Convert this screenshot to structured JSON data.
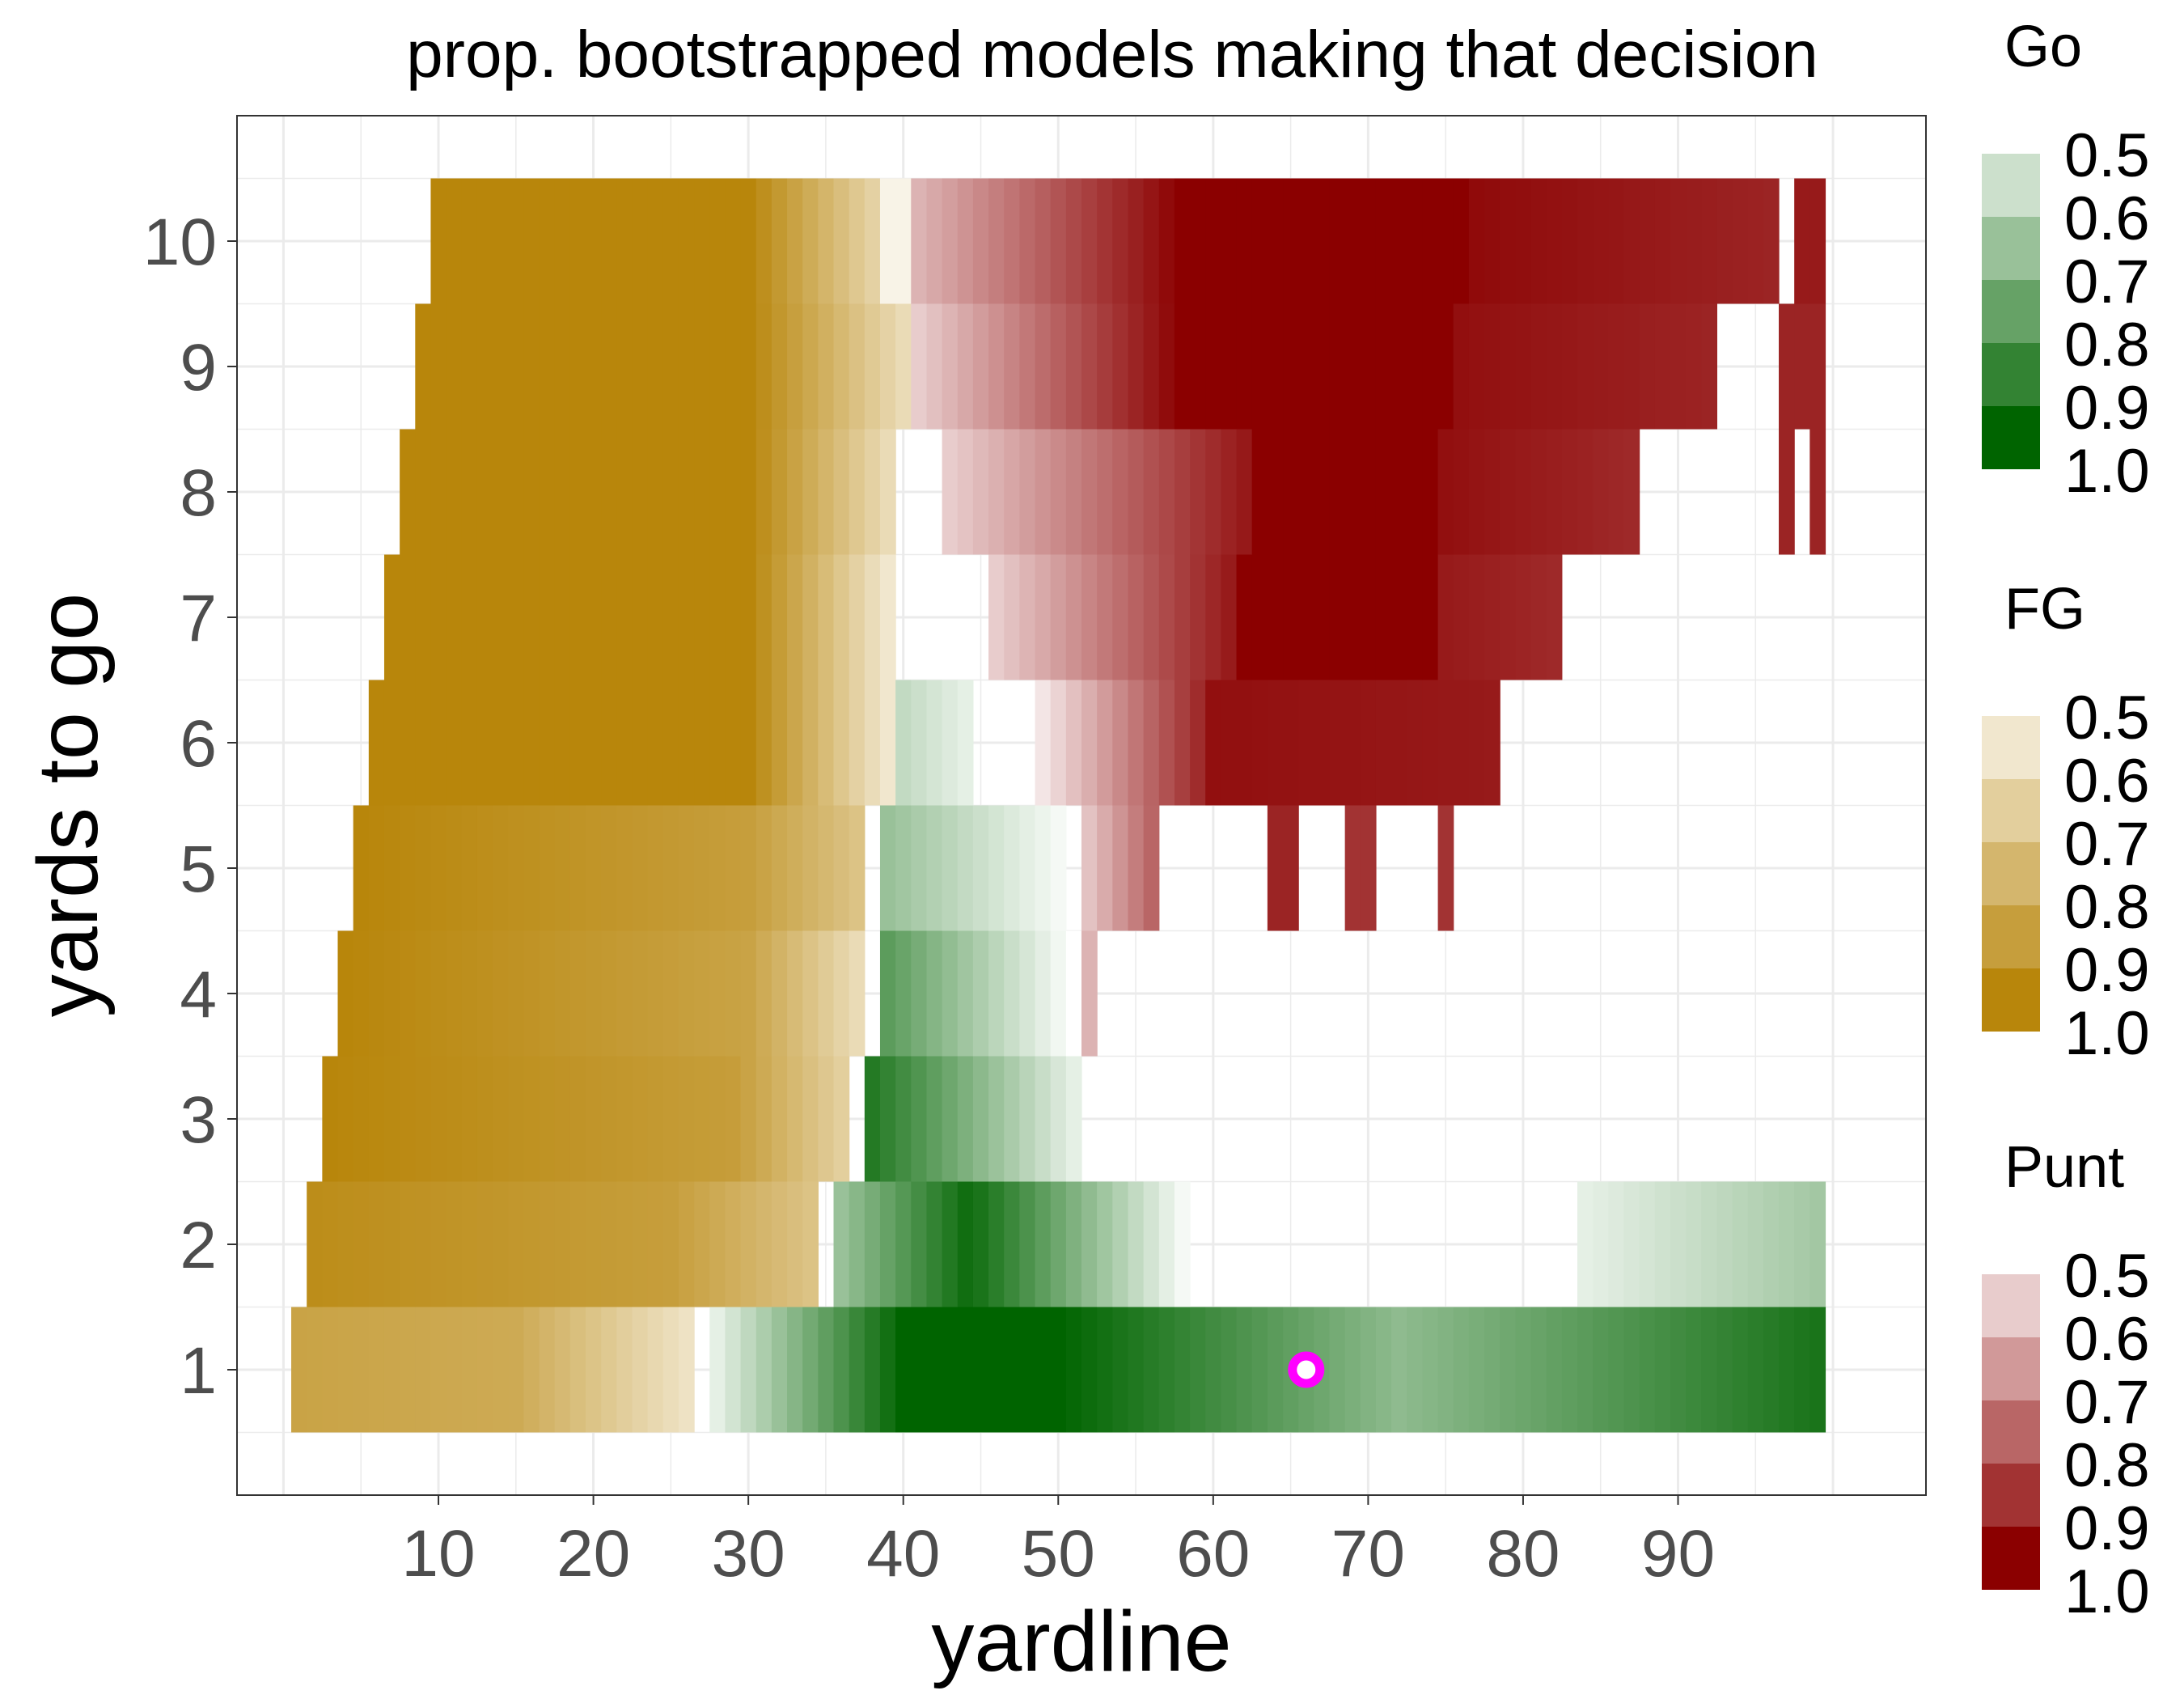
{
  "chart_data": {
    "type": "heatmap",
    "title": "prop. bootstrapped models making that decision",
    "xlabel": "yardline",
    "ylabel": "yards to go",
    "x_ticks": [
      "10",
      "20",
      "30",
      "40",
      "50",
      "60",
      "70",
      "80",
      "90"
    ],
    "y_ticks": [
      "1",
      "2",
      "3",
      "4",
      "5",
      "6",
      "7",
      "8",
      "9",
      "10"
    ],
    "xlim": [
      -3,
      106
    ],
    "ylim": [
      0,
      11
    ],
    "grid": true,
    "legend_position": "right",
    "legends": [
      {
        "title": "Go",
        "color": "#006400",
        "labels": [
          "0.5",
          "0.6",
          "0.7",
          "0.8",
          "0.9",
          "1.0"
        ]
      },
      {
        "title": "FG",
        "color": "#b8860b",
        "labels": [
          "0.5",
          "0.6",
          "0.7",
          "0.8",
          "0.9",
          "1.0"
        ]
      },
      {
        "title": "Punt",
        "color": "#8b0000",
        "labels": [
          "0.5",
          "0.6",
          "0.7",
          "0.8",
          "0.9",
          "1.0"
        ]
      }
    ],
    "marker": {
      "yardline": 66,
      "ydstogo": 1,
      "color": "#ff00ff"
    },
    "rows": [
      {
        "ydstogo": 10,
        "segments": [
          {
            "decision": "FG",
            "from": 10,
            "to": 30,
            "from_value": 1.0,
            "to_value": 1.0
          },
          {
            "decision": "FG",
            "from": 30,
            "to": 39,
            "from_value": 1.0,
            "to_value": 0.65
          },
          {
            "decision": "FG",
            "from": 39,
            "to": 40,
            "from_value": 0.55,
            "to_value": 0.55
          },
          {
            "decision": "Punt",
            "from": 41,
            "to": 58,
            "from_value": 0.65,
            "to_value": 1.0
          },
          {
            "decision": "Punt",
            "from": 58,
            "to": 77,
            "from_value": 1.0,
            "to_value": 1.0
          },
          {
            "decision": "Punt",
            "from": 77,
            "to": 96,
            "from_value": 0.98,
            "to_value": 0.93
          },
          {
            "decision": "Punt",
            "from": 98,
            "to": 99,
            "from_value": 0.95,
            "to_value": 0.95
          }
        ]
      },
      {
        "ydstogo": 9,
        "segments": [
          {
            "decision": "FG",
            "from": 9,
            "to": 30,
            "from_value": 1.0,
            "to_value": 1.0
          },
          {
            "decision": "FG",
            "from": 30,
            "to": 40,
            "from_value": 1.0,
            "to_value": 0.65
          },
          {
            "decision": "Punt",
            "from": 41,
            "to": 58,
            "from_value": 0.6,
            "to_value": 1.0
          },
          {
            "decision": "Punt",
            "from": 58,
            "to": 76,
            "from_value": 1.0,
            "to_value": 1.0
          },
          {
            "decision": "Punt",
            "from": 76,
            "to": 92,
            "from_value": 0.97,
            "to_value": 0.93
          },
          {
            "decision": "Punt",
            "from": 97,
            "to": 99,
            "from_value": 0.93,
            "to_value": 0.93
          }
        ]
      },
      {
        "ydstogo": 8,
        "segments": [
          {
            "decision": "FG",
            "from": 8,
            "to": 30,
            "from_value": 1.0,
            "to_value": 1.0
          },
          {
            "decision": "FG",
            "from": 30,
            "to": 39,
            "from_value": 1.0,
            "to_value": 0.65
          },
          {
            "decision": "Punt",
            "from": 43,
            "to": 63,
            "from_value": 0.6,
            "to_value": 0.97
          },
          {
            "decision": "Punt",
            "from": 63,
            "to": 75,
            "from_value": 1.0,
            "to_value": 1.0
          },
          {
            "decision": "Punt",
            "from": 75,
            "to": 87,
            "from_value": 0.97,
            "to_value": 0.92
          },
          {
            "decision": "Punt",
            "from": 97,
            "to": 97,
            "from_value": 0.93,
            "to_value": 0.93
          },
          {
            "decision": "Punt",
            "from": 99,
            "to": 99,
            "from_value": 0.93,
            "to_value": 0.93
          }
        ]
      },
      {
        "ydstogo": 7,
        "segments": [
          {
            "decision": "FG",
            "from": 7,
            "to": 30,
            "from_value": 1.0,
            "to_value": 1.0
          },
          {
            "decision": "FG",
            "from": 30,
            "to": 39,
            "from_value": 1.0,
            "to_value": 0.6
          },
          {
            "decision": "Punt",
            "from": 46,
            "to": 62,
            "from_value": 0.6,
            "to_value": 0.97
          },
          {
            "decision": "Punt",
            "from": 62,
            "to": 75,
            "from_value": 1.0,
            "to_value": 1.0
          },
          {
            "decision": "Punt",
            "from": 75,
            "to": 82,
            "from_value": 0.95,
            "to_value": 0.92
          }
        ]
      },
      {
        "ydstogo": 6,
        "segments": [
          {
            "decision": "FG",
            "from": 6,
            "to": 30,
            "from_value": 1.0,
            "to_value": 1.0
          },
          {
            "decision": "FG",
            "from": 30,
            "to": 39,
            "from_value": 1.0,
            "to_value": 0.6
          },
          {
            "decision": "Go",
            "from": 40,
            "to": 44,
            "from_value": 0.62,
            "to_value": 0.55
          },
          {
            "decision": "Punt",
            "from": 49,
            "to": 60,
            "from_value": 0.55,
            "to_value": 0.95
          },
          {
            "decision": "Punt",
            "from": 60,
            "to": 78,
            "from_value": 0.97,
            "to_value": 0.95
          }
        ]
      },
      {
        "ydstogo": 5,
        "segments": [
          {
            "decision": "FG",
            "from": 5,
            "to": 30,
            "from_value": 1.0,
            "to_value": 0.9
          },
          {
            "decision": "FG",
            "from": 30,
            "to": 37,
            "from_value": 0.9,
            "to_value": 0.75
          },
          {
            "decision": "Go",
            "from": 39,
            "to": 50,
            "from_value": 0.7,
            "to_value": 0.52
          },
          {
            "decision": "Punt",
            "from": 52,
            "to": 56,
            "from_value": 0.62,
            "to_value": 0.8
          },
          {
            "decision": "Punt",
            "from": 64,
            "to": 65,
            "from_value": 0.93,
            "to_value": 0.93
          },
          {
            "decision": "Punt",
            "from": 69,
            "to": 70,
            "from_value": 0.9,
            "to_value": 0.9
          },
          {
            "decision": "Punt",
            "from": 75,
            "to": 75,
            "from_value": 0.9,
            "to_value": 0.9
          }
        ]
      },
      {
        "ydstogo": 4,
        "segments": [
          {
            "decision": "FG",
            "from": 4,
            "to": 30,
            "from_value": 1.0,
            "to_value": 0.88
          },
          {
            "decision": "FG",
            "from": 30,
            "to": 37,
            "from_value": 0.88,
            "to_value": 0.65
          },
          {
            "decision": "Go",
            "from": 39,
            "to": 51,
            "from_value": 0.82,
            "to_value": 0.5
          },
          {
            "decision": "Punt",
            "from": 52,
            "to": 52,
            "from_value": 0.65,
            "to_value": 0.65
          }
        ]
      },
      {
        "ydstogo": 3,
        "segments": [
          {
            "decision": "FG",
            "from": 3,
            "to": 30,
            "from_value": 1.0,
            "to_value": 0.9
          },
          {
            "decision": "FG",
            "from": 30,
            "to": 36,
            "from_value": 0.88,
            "to_value": 0.7
          },
          {
            "decision": "Go",
            "from": 38,
            "to": 51,
            "from_value": 0.93,
            "to_value": 0.55
          }
        ]
      },
      {
        "ydstogo": 2,
        "segments": [
          {
            "decision": "FG",
            "from": 2,
            "to": 25,
            "from_value": 0.97,
            "to_value": 0.9
          },
          {
            "decision": "FG",
            "from": 25,
            "to": 34,
            "from_value": 0.9,
            "to_value": 0.75
          },
          {
            "decision": "Go",
            "from": 36,
            "to": 45,
            "from_value": 0.7,
            "to_value": 1.0
          },
          {
            "decision": "Go",
            "from": 45,
            "to": 58,
            "from_value": 0.95,
            "to_value": 0.52
          },
          {
            "decision": "Go",
            "from": 84,
            "to": 99,
            "from_value": 0.55,
            "to_value": 0.68
          }
        ]
      },
      {
        "ydstogo": 1,
        "segments": [
          {
            "decision": "FG",
            "from": 1,
            "to": 15,
            "from_value": 0.88,
            "to_value": 0.85
          },
          {
            "decision": "FG",
            "from": 15,
            "to": 26,
            "from_value": 0.85,
            "to_value": 0.62
          },
          {
            "decision": "Go",
            "from": 28,
            "to": 40,
            "from_value": 0.55,
            "to_value": 1.0
          },
          {
            "decision": "Go",
            "from": 40,
            "to": 50,
            "from_value": 1.0,
            "to_value": 1.0
          },
          {
            "decision": "Go",
            "from": 50,
            "to": 72,
            "from_value": 1.0,
            "to_value": 0.72
          },
          {
            "decision": "Go",
            "from": 72,
            "to": 99,
            "from_value": 0.72,
            "to_value": 0.95
          }
        ]
      }
    ]
  }
}
